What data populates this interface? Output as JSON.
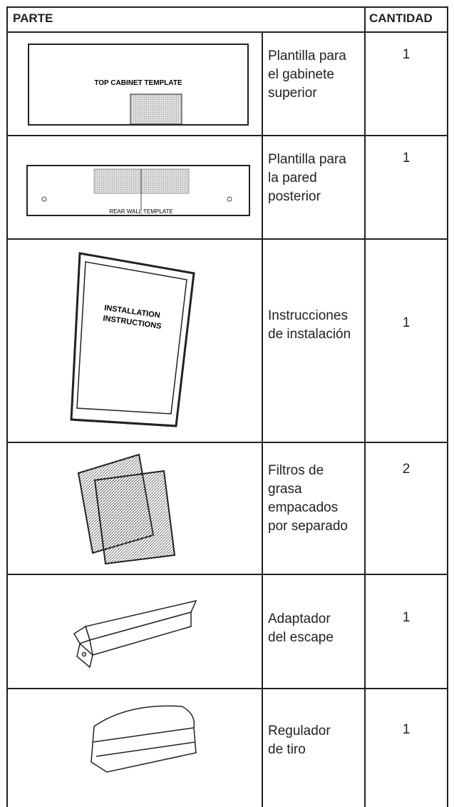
{
  "header": {
    "part": "PARTE",
    "quantity": "CANTIDAD"
  },
  "rows": [
    {
      "illustration_labels": [
        "TOP CABINET TEMPLATE"
      ],
      "description": [
        "Plantilla para",
        "el gabinete",
        "superior"
      ],
      "quantity": 1
    },
    {
      "illustration_labels": [
        "REAR WALL TEMPLATE"
      ],
      "description": [
        "Plantilla para",
        "la pared",
        "posterior"
      ],
      "quantity": 1
    },
    {
      "illustration_labels": [
        "INSTALLATION",
        "INSTRUCTIONS"
      ],
      "description": [
        "Instrucciones",
        "de instalación"
      ],
      "quantity": 1
    },
    {
      "description": [
        "Filtros de",
        "grasa",
        "empacados",
        "por separado"
      ],
      "quantity": 2
    },
    {
      "description": [
        "Adaptador",
        "del escape"
      ],
      "quantity": 1
    },
    {
      "description": [
        "Regulador",
        "de tiro"
      ],
      "quantity": 1
    }
  ]
}
